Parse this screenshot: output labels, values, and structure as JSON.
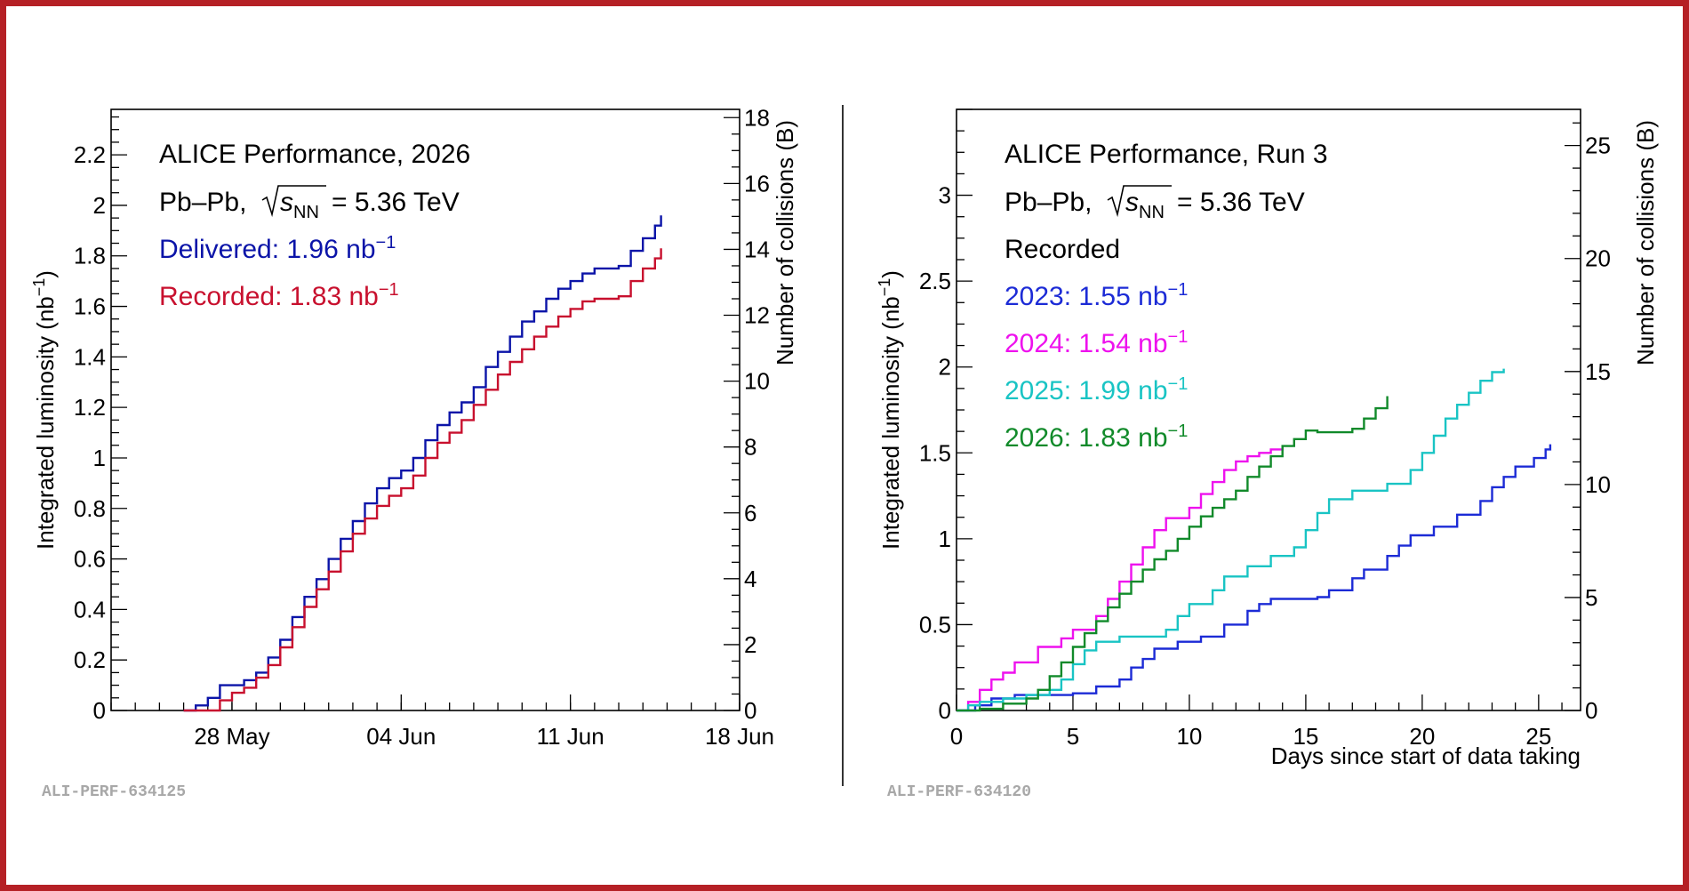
{
  "chart_data": [
    {
      "type": "line",
      "panel_id": "ALI-PERF-634125",
      "title": "ALICE Performance, 2026",
      "system_prefix": "Pb–Pb, ",
      "energy_text": "= 5.36 TeV",
      "ylabel": "Integrated luminosity (nb",
      "ylabel_exp": "−1",
      "ylabel_close": ")",
      "y2label": "Number of collisions (B)",
      "xlabel": "",
      "ylim": [
        0,
        2.38
      ],
      "y2lim": [
        0,
        18.25
      ],
      "xlim": [
        "2026-05-23",
        "2026-06-18"
      ],
      "yticks": [
        0,
        0.2,
        0.4,
        0.6,
        0.8,
        1,
        1.2,
        1.4,
        1.6,
        1.8,
        2,
        2.2
      ],
      "ytick_labels": [
        "0",
        "0.2",
        "0.4",
        "0.6",
        "0.8",
        "1",
        "1.2",
        "1.4",
        "1.6",
        "1.8",
        "2",
        "2.2"
      ],
      "y2ticks": [
        0,
        2,
        4,
        6,
        8,
        10,
        12,
        14,
        16,
        18
      ],
      "y2tick_labels": [
        "0",
        "2",
        "4",
        "6",
        "8",
        "10",
        "12",
        "14",
        "16",
        "18"
      ],
      "xticks": [
        "2026-05-28",
        "2026-06-04",
        "2026-06-11",
        "2026-06-18"
      ],
      "xtick_labels": [
        "28 May",
        "04 Jun",
        "11 Jun",
        "18 Jun"
      ],
      "legend_placement": "top-left",
      "series": [
        {
          "name": "Delivered",
          "legend_label": "Delivered: 1.96",
          "legend_unit": "nb",
          "legend_exp": "−1",
          "color": "#0b14a8",
          "points": [
            [
              "2026-05-26",
              0
            ],
            [
              "2026-05-26T12:00",
              0.02
            ],
            [
              "2026-05-27",
              0.05
            ],
            [
              "2026-05-27T12:00",
              0.1
            ],
            [
              "2026-05-28T12:00",
              0.12
            ],
            [
              "2026-05-29",
              0.15
            ],
            [
              "2026-05-29T12:00",
              0.21
            ],
            [
              "2026-05-30",
              0.28
            ],
            [
              "2026-05-30T12:00",
              0.37
            ],
            [
              "2026-05-31",
              0.45
            ],
            [
              "2026-05-31T12:00",
              0.52
            ],
            [
              "2026-06-01",
              0.6
            ],
            [
              "2026-06-01T12:00",
              0.68
            ],
            [
              "2026-06-02",
              0.75
            ],
            [
              "2026-06-02T12:00",
              0.82
            ],
            [
              "2026-06-03",
              0.88
            ],
            [
              "2026-06-03T12:00",
              0.92
            ],
            [
              "2026-06-04",
              0.95
            ],
            [
              "2026-06-04T12:00",
              1.0
            ],
            [
              "2026-06-05",
              1.07
            ],
            [
              "2026-06-05T12:00",
              1.13
            ],
            [
              "2026-06-06",
              1.18
            ],
            [
              "2026-06-06T12:00",
              1.22
            ],
            [
              "2026-06-07",
              1.28
            ],
            [
              "2026-06-07T12:00",
              1.36
            ],
            [
              "2026-06-08",
              1.42
            ],
            [
              "2026-06-08T12:00",
              1.48
            ],
            [
              "2026-06-09",
              1.54
            ],
            [
              "2026-06-09T12:00",
              1.58
            ],
            [
              "2026-06-10",
              1.63
            ],
            [
              "2026-06-10T12:00",
              1.67
            ],
            [
              "2026-06-11",
              1.7
            ],
            [
              "2026-06-11T12:00",
              1.73
            ],
            [
              "2026-06-12",
              1.75
            ],
            [
              "2026-06-13",
              1.76
            ],
            [
              "2026-06-13T12:00",
              1.82
            ],
            [
              "2026-06-14",
              1.87
            ],
            [
              "2026-06-14T12:00",
              1.92
            ],
            [
              "2026-06-14T18:00",
              1.96
            ]
          ]
        },
        {
          "name": "Recorded",
          "legend_label": "Recorded: 1.83",
          "legend_unit": "nb",
          "legend_exp": "−1",
          "color": "#c8102e",
          "points": [
            [
              "2026-05-26",
              0
            ],
            [
              "2026-05-27",
              0.0
            ],
            [
              "2026-05-27T12:00",
              0.04
            ],
            [
              "2026-05-28",
              0.07
            ],
            [
              "2026-05-28T12:00",
              0.09
            ],
            [
              "2026-05-29",
              0.13
            ],
            [
              "2026-05-29T12:00",
              0.18
            ],
            [
              "2026-05-30",
              0.25
            ],
            [
              "2026-05-30T12:00",
              0.33
            ],
            [
              "2026-05-31",
              0.41
            ],
            [
              "2026-05-31T12:00",
              0.48
            ],
            [
              "2026-06-01",
              0.55
            ],
            [
              "2026-06-01T12:00",
              0.63
            ],
            [
              "2026-06-02",
              0.7
            ],
            [
              "2026-06-02T12:00",
              0.76
            ],
            [
              "2026-06-03",
              0.81
            ],
            [
              "2026-06-03T12:00",
              0.85
            ],
            [
              "2026-06-04",
              0.88
            ],
            [
              "2026-06-04T12:00",
              0.93
            ],
            [
              "2026-06-05",
              1.0
            ],
            [
              "2026-06-05T12:00",
              1.06
            ],
            [
              "2026-06-06",
              1.1
            ],
            [
              "2026-06-06T12:00",
              1.15
            ],
            [
              "2026-06-07",
              1.21
            ],
            [
              "2026-06-07T12:00",
              1.27
            ],
            [
              "2026-06-08",
              1.33
            ],
            [
              "2026-06-08T12:00",
              1.38
            ],
            [
              "2026-06-09",
              1.43
            ],
            [
              "2026-06-09T12:00",
              1.48
            ],
            [
              "2026-06-10",
              1.52
            ],
            [
              "2026-06-10T12:00",
              1.56
            ],
            [
              "2026-06-11",
              1.59
            ],
            [
              "2026-06-11T12:00",
              1.62
            ],
            [
              "2026-06-12",
              1.63
            ],
            [
              "2026-06-13",
              1.64
            ],
            [
              "2026-06-13T12:00",
              1.7
            ],
            [
              "2026-06-14",
              1.75
            ],
            [
              "2026-06-14T12:00",
              1.79
            ],
            [
              "2026-06-14T18:00",
              1.83
            ]
          ]
        }
      ]
    },
    {
      "type": "line",
      "panel_id": "ALI-PERF-634120",
      "title": "ALICE Performance, Run 3",
      "system_prefix": "Pb–Pb, ",
      "energy_text": "= 5.36 TeV",
      "subtitle": "Recorded",
      "ylabel": "Integrated luminosity (nb",
      "ylabel_exp": "−1",
      "ylabel_close": ")",
      "y2label": "Number of collisions (B)",
      "xlabel": "Days since start of data taking",
      "xlim": [
        0,
        26.8
      ],
      "ylim": [
        0,
        3.5
      ],
      "y2lim": [
        0,
        26.6
      ],
      "xticks": [
        0,
        5,
        10,
        15,
        20,
        25
      ],
      "xtick_labels": [
        "0",
        "5",
        "10",
        "15",
        "20",
        "25"
      ],
      "yticks": [
        0,
        0.5,
        1,
        1.5,
        2,
        2.5,
        3
      ],
      "ytick_labels": [
        "0",
        "0.5",
        "1",
        "1.5",
        "2",
        "2.5",
        "3"
      ],
      "y2ticks": [
        0,
        5,
        10,
        15,
        20,
        25
      ],
      "y2tick_labels": [
        "0",
        "5",
        "10",
        "15",
        "20",
        "25"
      ],
      "legend_placement": "top-left",
      "series": [
        {
          "name": "2023",
          "legend_label": "2023: 1.55",
          "legend_unit": "nb",
          "legend_exp": "−1",
          "color": "#1c2bd6",
          "points": [
            [
              0,
              0
            ],
            [
              0.8,
              0.03
            ],
            [
              1.5,
              0.07
            ],
            [
              2.5,
              0.09
            ],
            [
              5,
              0.1
            ],
            [
              6,
              0.14
            ],
            [
              7,
              0.18
            ],
            [
              7.5,
              0.25
            ],
            [
              8,
              0.3
            ],
            [
              8.5,
              0.36
            ],
            [
              9.5,
              0.4
            ],
            [
              10.5,
              0.43
            ],
            [
              11.5,
              0.5
            ],
            [
              12.5,
              0.58
            ],
            [
              13,
              0.62
            ],
            [
              13.5,
              0.65
            ],
            [
              15,
              0.65
            ],
            [
              15.5,
              0.66
            ],
            [
              16,
              0.7
            ],
            [
              17,
              0.77
            ],
            [
              17.5,
              0.82
            ],
            [
              18.5,
              0.9
            ],
            [
              19,
              0.96
            ],
            [
              19.5,
              1.02
            ],
            [
              20.5,
              1.07
            ],
            [
              21.5,
              1.14
            ],
            [
              22.5,
              1.22
            ],
            [
              23,
              1.3
            ],
            [
              23.5,
              1.36
            ],
            [
              24,
              1.42
            ],
            [
              24.8,
              1.47
            ],
            [
              25.3,
              1.52
            ],
            [
              25.5,
              1.55
            ]
          ]
        },
        {
          "name": "2024",
          "legend_label": "2024: 1.54",
          "legend_unit": "nb",
          "legend_exp": "−1",
          "color": "#ee11ee",
          "points": [
            [
              0,
              0
            ],
            [
              0.5,
              0.05
            ],
            [
              1,
              0.12
            ],
            [
              1.5,
              0.18
            ],
            [
              2,
              0.22
            ],
            [
              2.5,
              0.28
            ],
            [
              3.5,
              0.37
            ],
            [
              4.5,
              0.42
            ],
            [
              5,
              0.47
            ],
            [
              6,
              0.55
            ],
            [
              6.5,
              0.65
            ],
            [
              7,
              0.75
            ],
            [
              7.5,
              0.85
            ],
            [
              8,
              0.95
            ],
            [
              8.5,
              1.05
            ],
            [
              9,
              1.12
            ],
            [
              10,
              1.18
            ],
            [
              10.5,
              1.26
            ],
            [
              11,
              1.33
            ],
            [
              11.5,
              1.4
            ],
            [
              12,
              1.45
            ],
            [
              12.5,
              1.48
            ],
            [
              13,
              1.5
            ],
            [
              13.5,
              1.52
            ],
            [
              14,
              1.54
            ]
          ]
        },
        {
          "name": "2025",
          "legend_label": "2025: 1.99",
          "legend_unit": "nb",
          "legend_exp": "−1",
          "color": "#19c4c4",
          "points": [
            [
              0,
              0
            ],
            [
              0.5,
              0.03
            ],
            [
              1,
              0.05
            ],
            [
              2,
              0.07
            ],
            [
              3,
              0.09
            ],
            [
              4,
              0.12
            ],
            [
              4.5,
              0.18
            ],
            [
              5,
              0.27
            ],
            [
              5.5,
              0.35
            ],
            [
              6,
              0.4
            ],
            [
              7,
              0.43
            ],
            [
              8.5,
              0.43
            ],
            [
              9,
              0.47
            ],
            [
              9.5,
              0.55
            ],
            [
              10,
              0.62
            ],
            [
              11,
              0.7
            ],
            [
              11.5,
              0.78
            ],
            [
              12.5,
              0.84
            ],
            [
              13.5,
              0.9
            ],
            [
              14.5,
              0.95
            ],
            [
              15,
              1.05
            ],
            [
              15.5,
              1.15
            ],
            [
              16,
              1.23
            ],
            [
              17,
              1.28
            ],
            [
              18.5,
              1.32
            ],
            [
              19.5,
              1.4
            ],
            [
              20,
              1.5
            ],
            [
              20.5,
              1.6
            ],
            [
              21,
              1.7
            ],
            [
              21.5,
              1.78
            ],
            [
              22,
              1.85
            ],
            [
              22.5,
              1.92
            ],
            [
              23,
              1.97
            ],
            [
              23.5,
              1.99
            ]
          ]
        },
        {
          "name": "2026",
          "legend_label": "2026: 1.83",
          "legend_unit": "nb",
          "legend_exp": "−1",
          "color": "#118a2a",
          "points": [
            [
              0,
              0
            ],
            [
              1,
              0.01
            ],
            [
              2,
              0.04
            ],
            [
              3,
              0.07
            ],
            [
              3.5,
              0.12
            ],
            [
              4,
              0.2
            ],
            [
              4.5,
              0.28
            ],
            [
              5,
              0.37
            ],
            [
              5.5,
              0.45
            ],
            [
              6,
              0.52
            ],
            [
              6.5,
              0.6
            ],
            [
              7,
              0.68
            ],
            [
              7.5,
              0.75
            ],
            [
              8,
              0.82
            ],
            [
              8.5,
              0.88
            ],
            [
              9,
              0.93
            ],
            [
              9.5,
              1.0
            ],
            [
              10,
              1.07
            ],
            [
              10.5,
              1.13
            ],
            [
              11,
              1.18
            ],
            [
              11.5,
              1.23
            ],
            [
              12,
              1.28
            ],
            [
              12.5,
              1.36
            ],
            [
              13,
              1.42
            ],
            [
              13.5,
              1.48
            ],
            [
              14,
              1.54
            ],
            [
              14.5,
              1.58
            ],
            [
              15,
              1.63
            ],
            [
              15.5,
              1.62
            ],
            [
              17,
              1.64
            ],
            [
              17.5,
              1.7
            ],
            [
              18,
              1.76
            ],
            [
              18.5,
              1.83
            ]
          ]
        }
      ]
    }
  ]
}
